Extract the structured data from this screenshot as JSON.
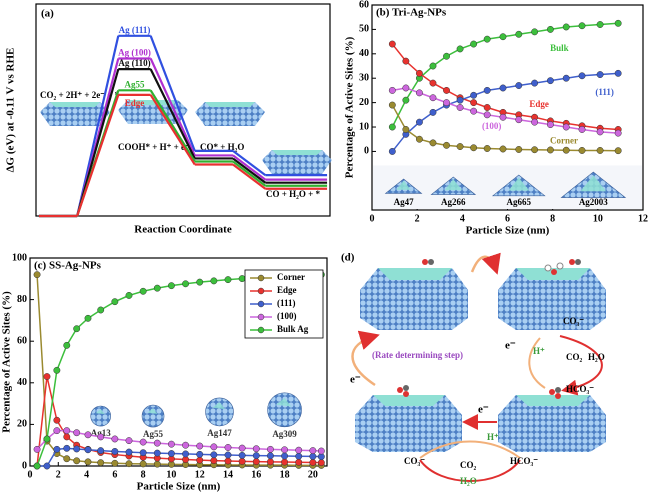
{
  "chart_data": [
    {
      "type": "step",
      "title": "(a)",
      "x_label": "Reaction Coordinate",
      "y_label": "ΔG (eV) at -0.11 V vs RHE",
      "categories": [
        "CO₂ + 2H⁺ + 2e⁻ + *",
        "COOH* + H⁺ + e⁻",
        "CO* + H₂O",
        "CO + H₂O + *"
      ],
      "ylim": [
        0,
        1.4
      ],
      "series": [
        {
          "name": "Ag (111)",
          "color": "#3050e0",
          "values": [
            0,
            1.19,
            0.43,
            0.27
          ]
        },
        {
          "name": "Ag (100)",
          "color": "#b030d0",
          "values": [
            0,
            1.04,
            0.4,
            0.24
          ]
        },
        {
          "name": "Ag (110)",
          "color": "#111111",
          "values": [
            0,
            0.97,
            0.38,
            0.22
          ]
        },
        {
          "name": "Ag55",
          "color": "#30b030",
          "values": [
            0,
            0.83,
            0.36,
            0.2
          ]
        },
        {
          "name": "Edge",
          "color": "#e83030",
          "values": [
            0,
            0.8,
            0.34,
            0.18
          ]
        }
      ]
    },
    {
      "type": "line",
      "title": "(b) Tri-Ag-NPs",
      "x_label": "Particle Size (nm)",
      "y_label": "Percentage of Active Sites (%)",
      "x": [
        0.9,
        1.5,
        2.1,
        2.7,
        3.3,
        3.9,
        4.5,
        5.1,
        5.8,
        6.5,
        7.2,
        7.9,
        8.6,
        9.3,
        10.1,
        10.9
      ],
      "xlim": [
        0,
        12
      ],
      "xticks": [
        0,
        2,
        4,
        6,
        8,
        10,
        12
      ],
      "ylim": [
        -24,
        60
      ],
      "yticks": [
        0,
        10,
        20,
        30,
        40,
        50,
        60
      ],
      "series": [
        {
          "name": "Bulk",
          "color": "#3cbf3c",
          "values": [
            10,
            21,
            30,
            35,
            39,
            42,
            44,
            46,
            47,
            48,
            49,
            50,
            51,
            51.5,
            52,
            52.5
          ]
        },
        {
          "name": "Edge",
          "color": "#e8322e",
          "values": [
            44,
            37,
            32,
            28,
            25,
            22,
            20,
            18,
            16,
            15,
            14,
            12.5,
            11.5,
            10.5,
            9.5,
            9
          ]
        },
        {
          "name": "(111)",
          "color": "#3f5fcc",
          "values": [
            0,
            7,
            12,
            16,
            19,
            21,
            23,
            25,
            26,
            27,
            28,
            29,
            30,
            31,
            31.5,
            32
          ]
        },
        {
          "name": "(100)",
          "color": "#cc66dd",
          "values": [
            25,
            26,
            24,
            22,
            20,
            18,
            16.5,
            15,
            14,
            13,
            12,
            11,
            10,
            9,
            8,
            7.5
          ]
        },
        {
          "name": "Corner",
          "color": "#9a8a30",
          "values": [
            19,
            9,
            5,
            3.5,
            2.5,
            2,
            1.5,
            1.2,
            1,
            0.8,
            0.7,
            0.6,
            0.5,
            0.4,
            0.4,
            0.3
          ]
        }
      ],
      "inset_labels": [
        "Ag47",
        "Ag266",
        "Ag665",
        "Ag2003"
      ]
    },
    {
      "type": "line",
      "title": "(c) SS-Ag-NPs",
      "x_label": "Particle Size (nm)",
      "y_label": "Percentage of Active Sites (%)",
      "x": [
        0.5,
        1.2,
        1.9,
        2.6,
        3.3,
        4.1,
        5,
        6,
        7,
        8,
        9,
        10,
        11,
        12,
        13,
        14,
        15,
        16,
        17,
        18,
        19,
        20,
        20.6
      ],
      "xlim": [
        0,
        21
      ],
      "xticks": [
        0,
        2,
        4,
        6,
        8,
        10,
        12,
        14,
        16,
        18,
        20
      ],
      "ylim": [
        0,
        100
      ],
      "yticks": [
        0,
        20,
        40,
        60,
        80,
        100
      ],
      "legend": "upper right",
      "series": [
        {
          "name": "Corner",
          "color": "#9a8a30",
          "values": [
            92,
            12,
            6,
            3.5,
            2.5,
            2,
            1.6,
            1.3,
            1.1,
            1,
            0.9,
            0.8,
            0.7,
            0.6,
            0.6,
            0.5,
            0.5,
            0.4,
            0.4,
            0.4,
            0.3,
            0.3,
            0.3
          ]
        },
        {
          "name": "Edge",
          "color": "#e8322e",
          "values": [
            0,
            43,
            22,
            14,
            10,
            8,
            6.5,
            5.5,
            4.8,
            4.2,
            3.8,
            3.4,
            3.1,
            2.8,
            2.6,
            2.4,
            2.2,
            2.1,
            2,
            1.9,
            1.8,
            1.7,
            1.6
          ]
        },
        {
          "name": "(111)",
          "color": "#3f5fcc",
          "values": [
            0,
            0,
            8,
            8.5,
            8.2,
            7.8,
            7.4,
            7,
            6.7,
            6.4,
            6.2,
            6,
            5.8,
            5.6,
            5.4,
            5.3,
            5.1,
            5,
            4.9,
            4.8,
            4.7,
            4.6,
            4.5
          ]
        },
        {
          "name": "(100)",
          "color": "#cc66dd",
          "values": [
            8,
            13,
            17,
            17,
            16,
            15,
            14,
            13,
            12.2,
            11.5,
            11,
            10.5,
            10,
            9.6,
            9.2,
            8.9,
            8.6,
            8.3,
            8,
            7.8,
            7.6,
            7.4,
            7.2
          ]
        },
        {
          "name": "Bulk Ag",
          "color": "#3cbf3c",
          "values": [
            0,
            13,
            46,
            58,
            66,
            71,
            75,
            79,
            82,
            84,
            85.5,
            86.7,
            87.6,
            88.4,
            89,
            89.6,
            90.1,
            90.5,
            90.9,
            91.2,
            91.5,
            91.8,
            92
          ]
        }
      ],
      "inset_labels": [
        "Ag13",
        "Ag55",
        "Ag147",
        "Ag309"
      ]
    }
  ],
  "diagram": {
    "title": "(d)",
    "step_label": "(Rate determining step)",
    "electrons": [
      "e⁻",
      "e⁻",
      "e⁻"
    ],
    "right_cycle": [
      "H⁺",
      "CO₂",
      "H₂O",
      "CO₃⁻",
      "HCO₃⁻"
    ],
    "bottom_cycle": [
      "H⁺",
      "CO₂",
      "H₂O",
      "CO₃⁻",
      "HCO₃⁻"
    ]
  }
}
